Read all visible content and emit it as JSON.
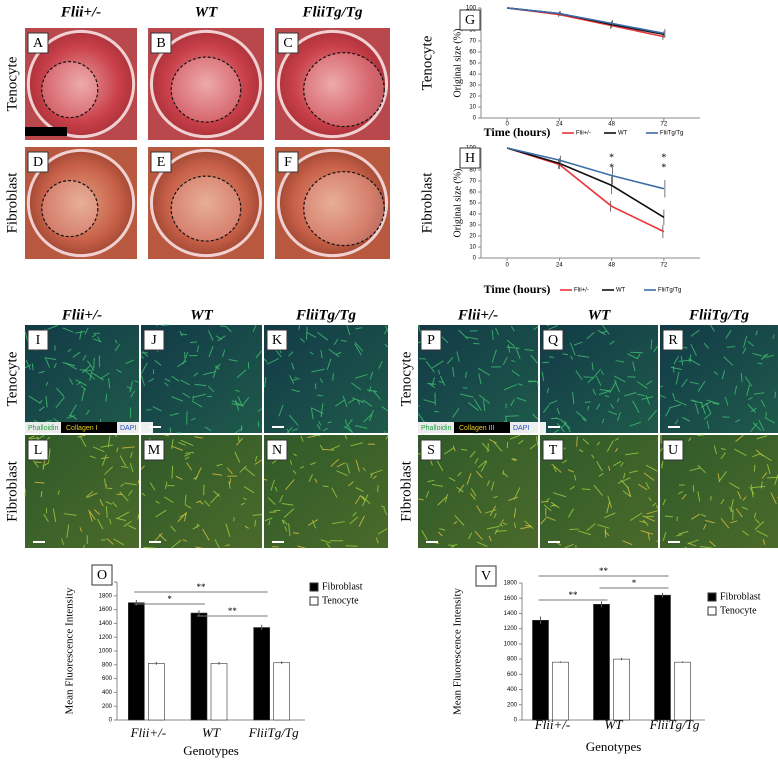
{
  "chart_data": [
    {
      "type": "line",
      "panel": "G",
      "row_label": "Tenocyte",
      "ylabel": "Original size (%)",
      "xlabel": "Time (hours)",
      "x": [
        0,
        24,
        48,
        72
      ],
      "xlim": [
        -12,
        84
      ],
      "xticks": [
        0,
        24,
        48,
        72
      ],
      "ylim": [
        0,
        100
      ],
      "yticks": [
        0,
        10,
        20,
        30,
        40,
        50,
        60,
        70,
        80,
        90,
        100
      ],
      "series": [
        {
          "name": "Flii+/-",
          "color": "#e8343a",
          "values": [
            100,
            94,
            84,
            74
          ],
          "errors": [
            0,
            2,
            3,
            3
          ]
        },
        {
          "name": "WT",
          "color": "#111111",
          "values": [
            100,
            95,
            85,
            76
          ],
          "errors": [
            0,
            2,
            3,
            3
          ]
        },
        {
          "name": "FliiTg/Tg",
          "color": "#3d6da8",
          "values": [
            100,
            95,
            86,
            77
          ],
          "errors": [
            0,
            2,
            3,
            4
          ]
        }
      ]
    },
    {
      "type": "line",
      "panel": "H",
      "row_label": "Fibroblast",
      "ylabel": "Original size (%)",
      "xlabel": "Time (hours)",
      "x": [
        0,
        24,
        48,
        72
      ],
      "xlim": [
        -12,
        84
      ],
      "xticks": [
        0,
        24,
        48,
        72
      ],
      "ylim": [
        0,
        100
      ],
      "yticks": [
        0,
        10,
        20,
        30,
        40,
        50,
        60,
        70,
        80,
        90,
        100
      ],
      "series": [
        {
          "name": "Flii+/-",
          "color": "#e8343a",
          "values": [
            100,
            85,
            47,
            24
          ],
          "errors": [
            0,
            4,
            5,
            6
          ]
        },
        {
          "name": "WT",
          "color": "#111111",
          "values": [
            100,
            86,
            66,
            37
          ],
          "errors": [
            0,
            5,
            8,
            7
          ]
        },
        {
          "name": "FliiTg/Tg",
          "color": "#3d6da8",
          "values": [
            100,
            89,
            75,
            63
          ],
          "errors": [
            0,
            4,
            8,
            8
          ]
        }
      ],
      "annotations": [
        {
          "x": 48,
          "labels": [
            "*",
            "*"
          ]
        },
        {
          "x": 72,
          "labels": [
            "*",
            "*"
          ]
        }
      ]
    },
    {
      "type": "bar",
      "panel": "O",
      "ylabel": "Mean Fluorescence Intensity",
      "xlabel": "Genotypes",
      "categories": [
        "Flii+/-",
        "WT",
        "FliiTg/Tg"
      ],
      "ylim": [
        0,
        2000
      ],
      "yticks": [
        0,
        200,
        400,
        600,
        800,
        1000,
        1200,
        1400,
        1600,
        1800,
        2000
      ],
      "series": [
        {
          "name": "Fibroblast",
          "color": "#000000",
          "values": [
            1700,
            1550,
            1340
          ],
          "errors": [
            40,
            40,
            40
          ]
        },
        {
          "name": "Tenocyte",
          "color": "#ffffff",
          "values": [
            820,
            820,
            830
          ],
          "errors": [
            20,
            20,
            20
          ]
        }
      ],
      "significance": [
        {
          "between": [
            "Flii+/-",
            "FliiTg/Tg"
          ],
          "label": "**"
        },
        {
          "between": [
            "Flii+/-",
            "WT"
          ],
          "label": "*"
        },
        {
          "between": [
            "WT",
            "FliiTg/Tg"
          ],
          "label": "**"
        }
      ]
    },
    {
      "type": "bar",
      "panel": "V",
      "ylabel": "Mean Fluorescence Intensity",
      "xlabel": "Genotypes",
      "categories": [
        "Flii+/-",
        "WT",
        "FliiTg/Tg"
      ],
      "ylim": [
        0,
        1800
      ],
      "yticks": [
        0,
        200,
        400,
        600,
        800,
        1000,
        1200,
        1400,
        1600,
        1800
      ],
      "series": [
        {
          "name": "Fibroblast",
          "color": "#000000",
          "values": [
            1310,
            1520,
            1640
          ],
          "errors": [
            50,
            40,
            30
          ]
        },
        {
          "name": "Tenocyte",
          "color": "#ffffff",
          "values": [
            760,
            800,
            760
          ],
          "errors": [
            10,
            15,
            10
          ]
        }
      ],
      "significance": [
        {
          "between": [
            "Flii+/-",
            "FliiTg/Tg"
          ],
          "label": "**"
        },
        {
          "between": [
            "WT",
            "FliiTg/Tg"
          ],
          "label": "*"
        },
        {
          "between": [
            "Flii+/-",
            "WT"
          ],
          "label": "**"
        }
      ]
    }
  ],
  "photo_panels": [
    {
      "columns": [
        "Flii+/-",
        "WT",
        "FliiTg/Tg"
      ],
      "rows": [
        "Tenocyte",
        "Fibroblast"
      ],
      "letters": [
        "A",
        "B",
        "C",
        "D",
        "E",
        "F"
      ]
    },
    {
      "columns": [
        "Flii+/-",
        "WT",
        "FliiTg/Tg"
      ],
      "rows": [
        "Tenocyte",
        "Fibroblast"
      ],
      "letters": [
        "I",
        "J",
        "K",
        "L",
        "M",
        "N"
      ],
      "stains": [
        "Phalloidin",
        "Collagen I",
        "DAPI"
      ]
    },
    {
      "columns": [
        "Flii+/-",
        "WT",
        "FliiTg/Tg"
      ],
      "rows": [
        "Tenocyte",
        "Fibroblast"
      ],
      "letters": [
        "P",
        "Q",
        "R",
        "S",
        "T",
        "U"
      ],
      "stains": [
        "Phalloidin",
        "Collagen III",
        "DAPI"
      ]
    }
  ]
}
